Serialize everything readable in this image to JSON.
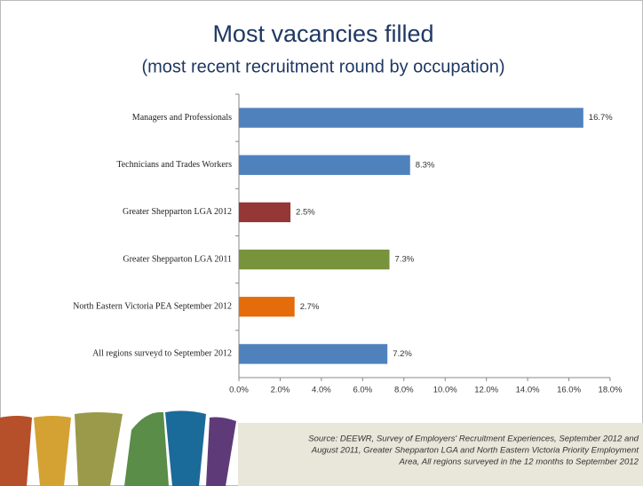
{
  "chart_data": {
    "type": "bar",
    "orientation": "horizontal",
    "title": "Most vacancies filled",
    "subtitle": "(most recent recruitment round by occupation)",
    "categories": [
      "Managers and Professionals",
      "Technicians and Trades Workers",
      "Greater Shepparton LGA 2012",
      "Greater Shepparton LGA 2011",
      "North Eastern Victoria PEA September 2012",
      "All regions surveyd to September 2012"
    ],
    "values": [
      16.7,
      8.3,
      2.5,
      7.3,
      2.7,
      7.2
    ],
    "value_labels": [
      "16.7%",
      "8.3%",
      "2.5%",
      "7.3%",
      "2.7%",
      "7.2%"
    ],
    "colors": [
      "#4f81bd",
      "#4f81bd",
      "#953735",
      "#77933c",
      "#e46c0a",
      "#4f81bd"
    ],
    "xlim": [
      0,
      18
    ],
    "xticks": [
      {
        "value": 0,
        "label": "0.0%"
      },
      {
        "value": 2,
        "label": "2.0%"
      },
      {
        "value": 4,
        "label": "4.0%"
      },
      {
        "value": 6,
        "label": "6.0%"
      },
      {
        "value": 8,
        "label": "8.0%"
      },
      {
        "value": 10,
        "label": "10.0%"
      },
      {
        "value": 12,
        "label": "12.0%"
      },
      {
        "value": 14,
        "label": "14.0%"
      },
      {
        "value": 16,
        "label": "16.0%"
      },
      {
        "value": 18,
        "label": "18.0%"
      }
    ],
    "grid": false,
    "source": [
      "Source: DEEWR, Survey of Employers' Recruitment Experiences, September 2012 and",
      "August 2011, Greater Shepparton LGA and  North Eastern Victoria Priority Employment",
      "Area, All regions surveyed in the 12 months to September 2012"
    ]
  }
}
